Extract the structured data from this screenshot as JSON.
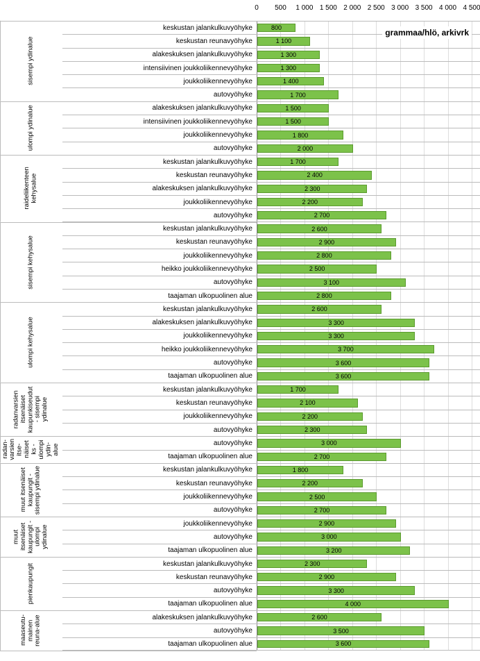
{
  "chart": {
    "title": "grammaa/hlö, arkivrk",
    "xmax": 4500,
    "xtick_step": 500,
    "xticks": [
      "0",
      "500",
      "1 000",
      "1 500",
      "2 000",
      "2 500",
      "3 000",
      "3 500",
      "4 000",
      "4 500"
    ],
    "bar_color": "#7cc24a",
    "bar_border": "#5a9a2e",
    "value_fontsize": 9,
    "label_fontsize": 10,
    "tick_fontsize": 10,
    "groups": [
      {
        "label": "sisempi ydinalue",
        "rows": [
          {
            "label": "keskustan jalankulkuvyöhyke",
            "value": 800,
            "text": "800"
          },
          {
            "label": "keskustan reunavyöhyke",
            "value": 1100,
            "text": "1 100"
          },
          {
            "label": "alakeskuksen jalankulkuvyöhyke",
            "value": 1300,
            "text": "1 300"
          },
          {
            "label": "intensiivinen joukkoliikennevyöhyke",
            "value": 1300,
            "text": "1 300"
          },
          {
            "label": "joukkoliikennevyöhyke",
            "value": 1400,
            "text": "1 400"
          },
          {
            "label": "autovyöhyke",
            "value": 1700,
            "text": "1 700"
          }
        ]
      },
      {
        "label": "ulompi ydinalue",
        "rows": [
          {
            "label": "alakeskuksen jalankulkuvyöhyke",
            "value": 1500,
            "text": "1 500"
          },
          {
            "label": "intensiivinen joukkoliikennevyöhyke",
            "value": 1500,
            "text": "1 500"
          },
          {
            "label": "joukkoliikennevyöhyke",
            "value": 1800,
            "text": "1 800"
          },
          {
            "label": "autovyöhyke",
            "value": 2000,
            "text": "2 000"
          }
        ]
      },
      {
        "label": "raideliikenteen\nkehysalue",
        "rows": [
          {
            "label": "keskustan jalankulkuvyöhyke",
            "value": 1700,
            "text": "1 700"
          },
          {
            "label": "keskustan reunavyöhyke",
            "value": 2400,
            "text": "2 400"
          },
          {
            "label": "alakeskuksen jalankulkuvyöhyke",
            "value": 2300,
            "text": "2 300"
          },
          {
            "label": "joukkoliikennevyöhyke",
            "value": 2200,
            "text": "2 200"
          },
          {
            "label": "autovyöhyke",
            "value": 2700,
            "text": "2 700"
          }
        ]
      },
      {
        "label": "sisempi kehysalue",
        "rows": [
          {
            "label": "keskustan jalankulkuvyöhyke",
            "value": 2600,
            "text": "2 600"
          },
          {
            "label": "keskustan reunavyöhyke",
            "value": 2900,
            "text": "2 900"
          },
          {
            "label": "joukkoliikennevyöhyke",
            "value": 2800,
            "text": "2 800"
          },
          {
            "label": "heikko joukkoliikennevyöhyke",
            "value": 2500,
            "text": "2 500"
          },
          {
            "label": "autovyöhyke",
            "value": 3100,
            "text": "3 100"
          },
          {
            "label": "taajaman ulkopuolinen alue",
            "value": 2800,
            "text": "2 800"
          }
        ]
      },
      {
        "label": "ulompi kehysalue",
        "rows": [
          {
            "label": "keskustan jalankulkuvyöhyke",
            "value": 2600,
            "text": "2 600"
          },
          {
            "label": "alakeskuksen jalankulkuvyöhyke",
            "value": 3300,
            "text": "3 300"
          },
          {
            "label": "joukkoliikennevyöhyke",
            "value": 3300,
            "text": "3 300"
          },
          {
            "label": "heikko joukkoliikennevyöhyke",
            "value": 3700,
            "text": "3 700"
          },
          {
            "label": "autovyöhyke",
            "value": 3600,
            "text": "3 600"
          },
          {
            "label": "taajaman ulkopuolinen alue",
            "value": 3600,
            "text": "3 600"
          }
        ]
      },
      {
        "label": "radanvarsien\nitsenäiset\nkaupunkiseudut\n- sisempi\nydinalue",
        "rows": [
          {
            "label": "keskustan jalankulkuvyöhyke",
            "value": 1700,
            "text": "1 700"
          },
          {
            "label": "keskustan reunavyöhyke",
            "value": 2100,
            "text": "2 100"
          },
          {
            "label": "joukkoliikennevyöhyke",
            "value": 2200,
            "text": "2 200"
          },
          {
            "label": "autovyöhyke",
            "value": 2300,
            "text": "2 300"
          }
        ]
      },
      {
        "label": "radan-\nvarsien\nitse-\nnäiset\nks -\nulompi\nydin-\nalue",
        "rows": [
          {
            "label": "autovyöhyke",
            "value": 3000,
            "text": "3 000"
          },
          {
            "label": "taajaman ulkopuolinen alue",
            "value": 2700,
            "text": "2 700"
          }
        ]
      },
      {
        "label": "muut itsenäiset\nkaupungit -\nsisempi ydinalue",
        "rows": [
          {
            "label": "keskustan jalankulkuvyöhyke",
            "value": 1800,
            "text": "1 800"
          },
          {
            "label": "keskustan reunavyöhyke",
            "value": 2200,
            "text": "2 200"
          },
          {
            "label": "joukkoliikennevyöhyke",
            "value": 2500,
            "text": "2 500"
          },
          {
            "label": "autovyöhyke",
            "value": 2700,
            "text": "2 700"
          }
        ]
      },
      {
        "label": "muut\nitsenäiset\nkaupungit -\nulompi\nydinalue",
        "rows": [
          {
            "label": "joukkoliikennevyöhyke",
            "value": 2900,
            "text": "2 900"
          },
          {
            "label": "autovyöhyke",
            "value": 3000,
            "text": "3 000"
          },
          {
            "label": "taajaman ulkopuolinen alue",
            "value": 3200,
            "text": "3 200"
          }
        ]
      },
      {
        "label": "pienkaupungit",
        "rows": [
          {
            "label": "keskustan jalankulkuvyöhyke",
            "value": 2300,
            "text": "2 300"
          },
          {
            "label": "keskustan reunavyöhyke",
            "value": 2900,
            "text": "2 900"
          },
          {
            "label": "autovyöhyke",
            "value": 3300,
            "text": "3 300"
          },
          {
            "label": "taajaman ulkopuolinen alue",
            "value": 4000,
            "text": "4 000"
          }
        ]
      },
      {
        "label": "maaseutu-\nmainen\nreuna-alue",
        "rows": [
          {
            "label": "alakeskuksen jalankulkuvyöhyke",
            "value": 2600,
            "text": "2 600"
          },
          {
            "label": "autovyöhyke",
            "value": 3500,
            "text": "3 500"
          },
          {
            "label": "taajaman ulkopuolinen alue",
            "value": 3600,
            "text": "3 600"
          }
        ]
      }
    ]
  }
}
